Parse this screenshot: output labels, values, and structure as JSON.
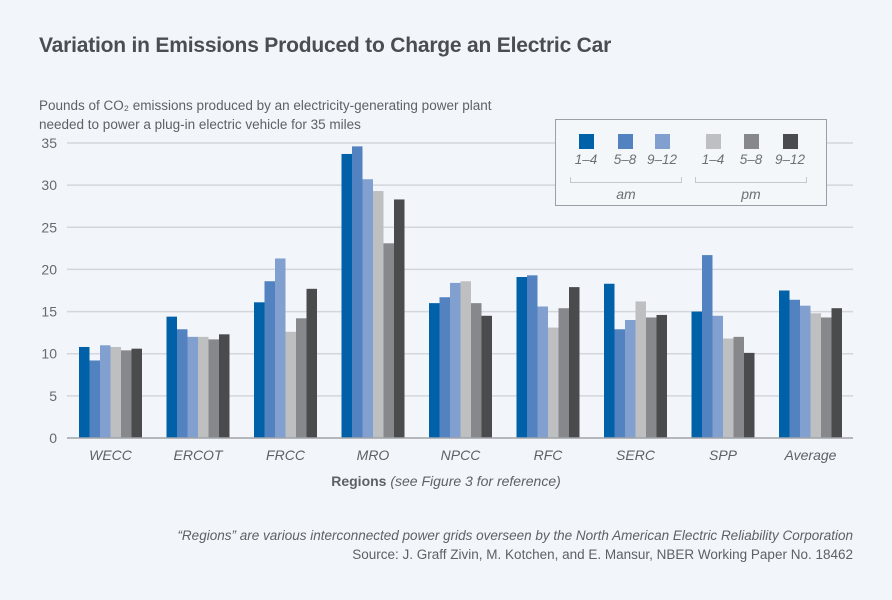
{
  "title": "Variation in Emissions Produced to Charge an Electric Car",
  "subtitle_line1": "Pounds of CO₂ emissions produced by an electricity-generating power plant",
  "subtitle_line2": "needed to power a plug-in electric vehicle for 35 miles",
  "xaxis_label_bold": "Regions",
  "xaxis_label_italic": "(see Figure 3 for reference)",
  "footnote": "“Regions” are various interconnected power grids overseen by the North American Electric Reliability Corporation",
  "source": "Source: J. Graff Zivin, M. Kotchen, and E. Mansur, NBER Working Paper No. 18462",
  "legend": {
    "groups": [
      {
        "label": "am",
        "items": [
          {
            "label": "1–4",
            "color": "#0061a8"
          },
          {
            "label": "5–8",
            "color": "#5282c0"
          },
          {
            "label": "9–12",
            "color": "#819fcf"
          }
        ]
      },
      {
        "label": "pm",
        "items": [
          {
            "label": "1–4",
            "color": "#bebfc1"
          },
          {
            "label": "5–8",
            "color": "#87888c"
          },
          {
            "label": "9–12",
            "color": "#4a4b4d"
          }
        ]
      }
    ]
  },
  "chart_data": {
    "type": "bar",
    "title": "Variation in Emissions Produced to Charge an Electric Car",
    "ylabel": "Pounds of CO2 emissions produced by an electricity-generating power plant needed to power a plug-in electric vehicle for 35 miles",
    "xlabel": "Regions (see Figure 3 for reference)",
    "ylim": [
      0,
      35
    ],
    "yticks": [
      0,
      5,
      10,
      15,
      20,
      25,
      30,
      35
    ],
    "grid": true,
    "legend_position": "top-right",
    "categories": [
      "WECC",
      "ERCOT",
      "FRCC",
      "MRO",
      "NPCC",
      "RFC",
      "SERC",
      "SPP",
      "Average"
    ],
    "series": [
      {
        "name": "am 1–4",
        "color": "#0061a8",
        "values": [
          10.8,
          14.4,
          16.1,
          33.7,
          16.0,
          19.1,
          18.3,
          15.0,
          17.5
        ]
      },
      {
        "name": "am 5–8",
        "color": "#5282c0",
        "values": [
          9.2,
          12.9,
          18.6,
          34.6,
          16.7,
          19.3,
          12.9,
          21.7,
          16.4
        ]
      },
      {
        "name": "am 9–12",
        "color": "#819fcf",
        "values": [
          11.0,
          12.0,
          21.3,
          30.7,
          18.4,
          15.6,
          14.0,
          14.5,
          15.7
        ]
      },
      {
        "name": "pm 1–4",
        "color": "#bebfc1",
        "values": [
          10.8,
          12.0,
          12.6,
          29.3,
          18.6,
          13.1,
          16.2,
          11.8,
          14.8
        ]
      },
      {
        "name": "pm 5–8",
        "color": "#87888c",
        "values": [
          10.4,
          11.7,
          14.2,
          23.1,
          16.0,
          15.4,
          14.3,
          12.0,
          14.3
        ]
      },
      {
        "name": "pm 9–12",
        "color": "#4a4b4d",
        "values": [
          10.6,
          12.3,
          17.7,
          28.3,
          14.5,
          17.9,
          14.6,
          10.1,
          15.4
        ]
      }
    ]
  }
}
